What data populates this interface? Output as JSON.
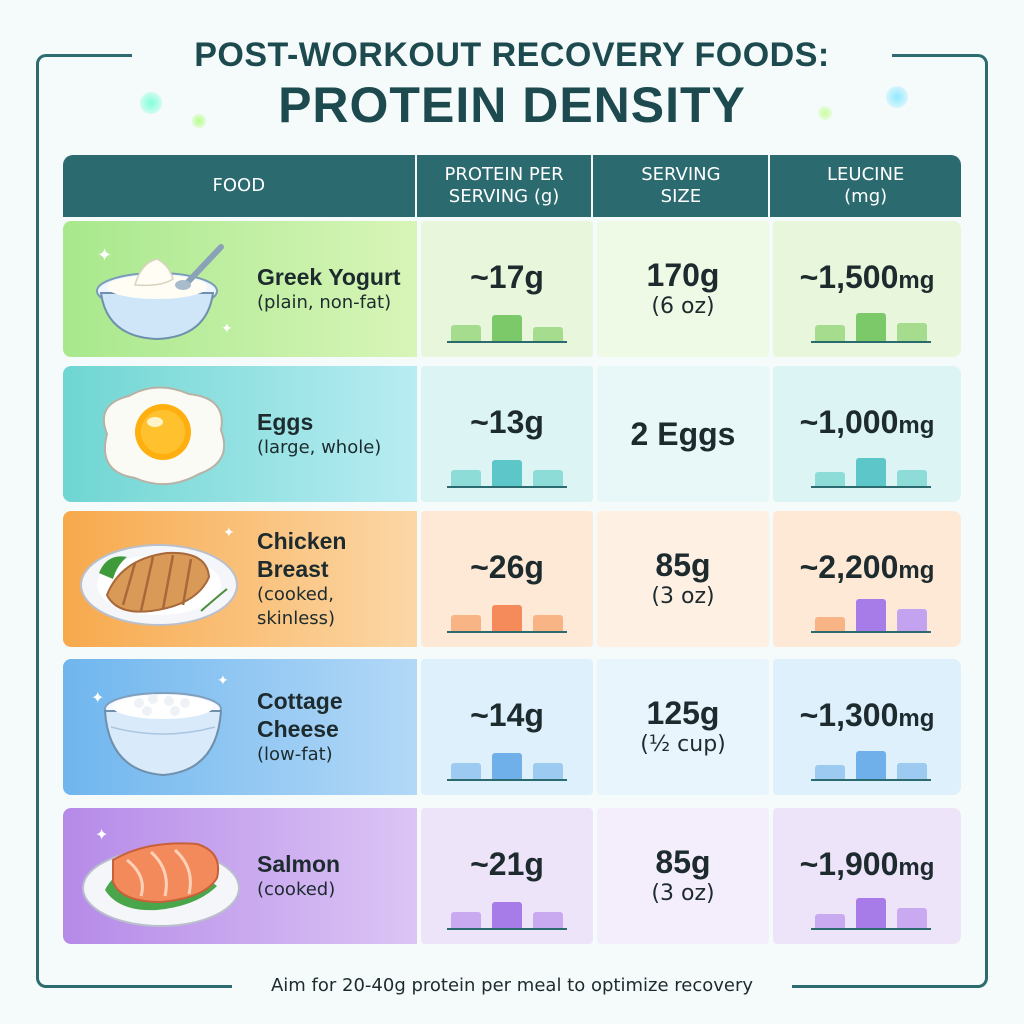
{
  "title": {
    "line1": "POST-WORKOUT RECOVERY FOODS:",
    "line2": "PROTEIN DENSITY"
  },
  "table": {
    "headers": {
      "food": "FOOD",
      "protein_line1": "PROTEIN PER",
      "protein_line2": "SERVING (g)",
      "serving_line1": "SERVING",
      "serving_line2": "SIZE",
      "leucine_line1": "LEUCINE",
      "leucine_line2": "(mg)"
    },
    "rows": [
      {
        "name": "Greek Yogurt",
        "desc": "(plain, non-fat)",
        "protein": "~17g",
        "serving_main": "170g",
        "serving_sub": "(6 oz)",
        "leucine": "~1,500",
        "leucine_unit": "mg",
        "protein_g": 17,
        "leucine_mg": 1500
      },
      {
        "name": "Eggs",
        "desc": "(large, whole)",
        "protein": "~13g",
        "serving_main": "2 Eggs",
        "serving_sub": "",
        "leucine": "~1,000",
        "leucine_unit": "mg",
        "protein_g": 13,
        "leucine_mg": 1000
      },
      {
        "name": "Chicken Breast",
        "desc": "(cooked, skinless)",
        "protein": "~26g",
        "serving_main": "85g",
        "serving_sub": "(3 oz)",
        "leucine": "~2,200",
        "leucine_unit": "mg",
        "protein_g": 26,
        "leucine_mg": 2200
      },
      {
        "name": "Cottage Cheese",
        "desc": "(low-fat)",
        "protein": "~14g",
        "serving_main": "125g",
        "serving_sub": "(½ cup)",
        "leucine": "~1,300",
        "leucine_unit": "mg",
        "protein_g": 14,
        "leucine_mg": 1300
      },
      {
        "name": "Salmon",
        "desc": "(cooked)",
        "protein": "~21g",
        "serving_main": "85g",
        "serving_sub": "(3 oz)",
        "leucine": "~1,900",
        "leucine_unit": "mg",
        "protein_g": 21,
        "leucine_mg": 1900
      }
    ]
  },
  "footer": "Aim for 20-40g protein per meal to optimize recovery",
  "icons": [
    "yogurt-bowl-icon",
    "fried-egg-icon",
    "chicken-breast-icon",
    "cottage-cheese-icon",
    "salmon-icon"
  ],
  "colors": {
    "header_bg": "#2b6b70",
    "title": "#1c4a4e"
  }
}
